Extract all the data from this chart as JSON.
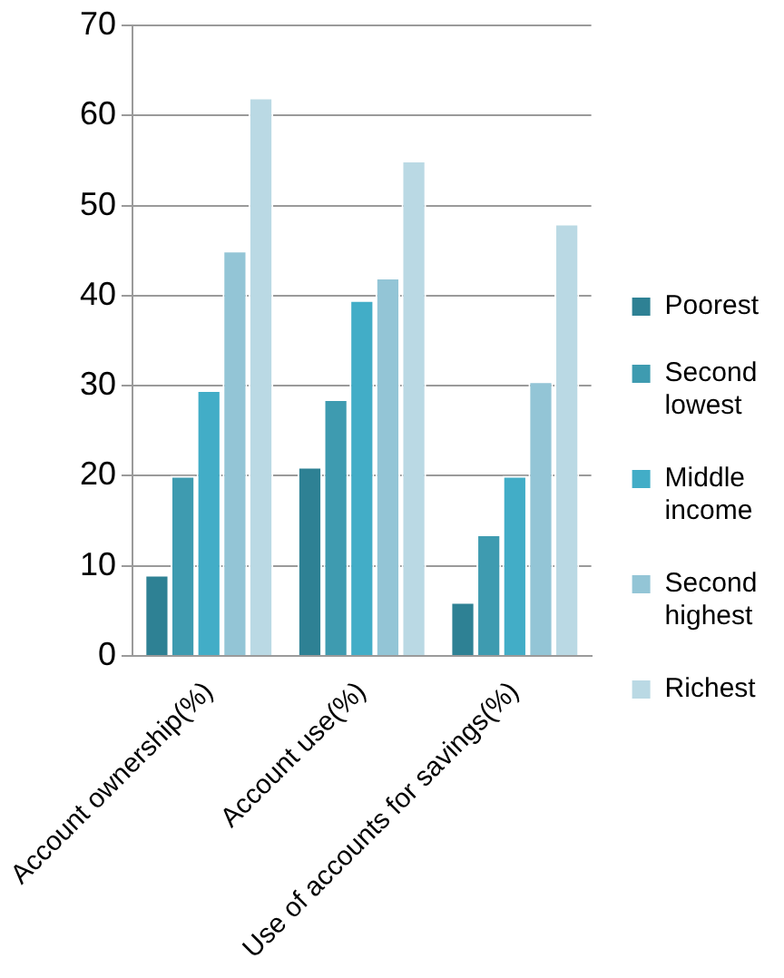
{
  "chart_data": {
    "type": "bar",
    "categories": [
      "Account ownership(%)",
      "Account use(%)",
      "Use of accounts for savings(%)"
    ],
    "series": [
      {
        "name": "Poorest",
        "color": "#2e8194",
        "values": [
          9,
          21,
          6
        ]
      },
      {
        "name": "Second lowest",
        "color": "#3e9bb0",
        "values": [
          20,
          28.5,
          13.5
        ]
      },
      {
        "name": "Middle income",
        "color": "#42adc7",
        "values": [
          29.5,
          39.5,
          20
        ]
      },
      {
        "name": "Second highest",
        "color": "#93c5d6",
        "values": [
          45,
          42,
          30.5
        ]
      },
      {
        "name": "Richest",
        "color": "#bad9e4",
        "values": [
          62,
          55,
          48
        ]
      }
    ],
    "ylim": [
      0,
      70
    ],
    "yticks": [
      0,
      10,
      20,
      30,
      40,
      50,
      60,
      70
    ],
    "grid": "y",
    "legend": "right"
  }
}
